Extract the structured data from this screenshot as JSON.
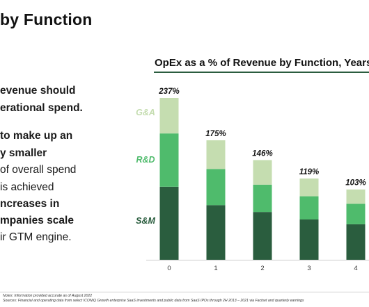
{
  "slide": {
    "title": "by Function",
    "body_lines": [
      {
        "text": "evenue should",
        "bold": true
      },
      {
        "text": "erational spend.",
        "bold": true
      },
      {
        "text": "to make up an",
        "bold": true
      },
      {
        "text": "y smaller",
        "bold": true
      },
      {
        "text": "of overall spend",
        "bold": false
      },
      {
        "text": "is achieved",
        "bold": false
      },
      {
        "text": "ncreases in",
        "bold": true
      },
      {
        "text": "mpanies scale",
        "bold": true
      },
      {
        "text": "ir GTM engine.",
        "bold": false
      }
    ],
    "footnotes": [
      "Notes: Information provided accurate as of August 2022",
      "Sources: Financial and operating data from select ICONIQ Growth enterprise SaaS investments and public data from SaaS IPOs through 2H 2013 – 2021 via Factset and quarterly earnings"
    ]
  },
  "colors": {
    "sm": "#2a5d3e",
    "rd": "#4fbb6c",
    "ga": "#c5ddb0",
    "accent_rule": "#2b5d3f"
  },
  "chart_data": {
    "type": "bar",
    "stacked": true,
    "title": "OpEx as a % of Revenue by Function, Years a",
    "categories": [
      "0",
      "1",
      "2",
      "3",
      "4"
    ],
    "series": [
      {
        "name": "S&M",
        "values": [
          107,
          80,
          70,
          59,
          52
        ]
      },
      {
        "name": "R&D",
        "values": [
          78,
          53,
          40,
          34,
          30
        ]
      },
      {
        "name": "G&A",
        "values": [
          52,
          42,
          36,
          26,
          21
        ]
      }
    ],
    "totals": [
      "237%",
      "175%",
      "146%",
      "119%",
      "103%"
    ],
    "ylim": [
      0,
      250
    ],
    "grid": false
  }
}
